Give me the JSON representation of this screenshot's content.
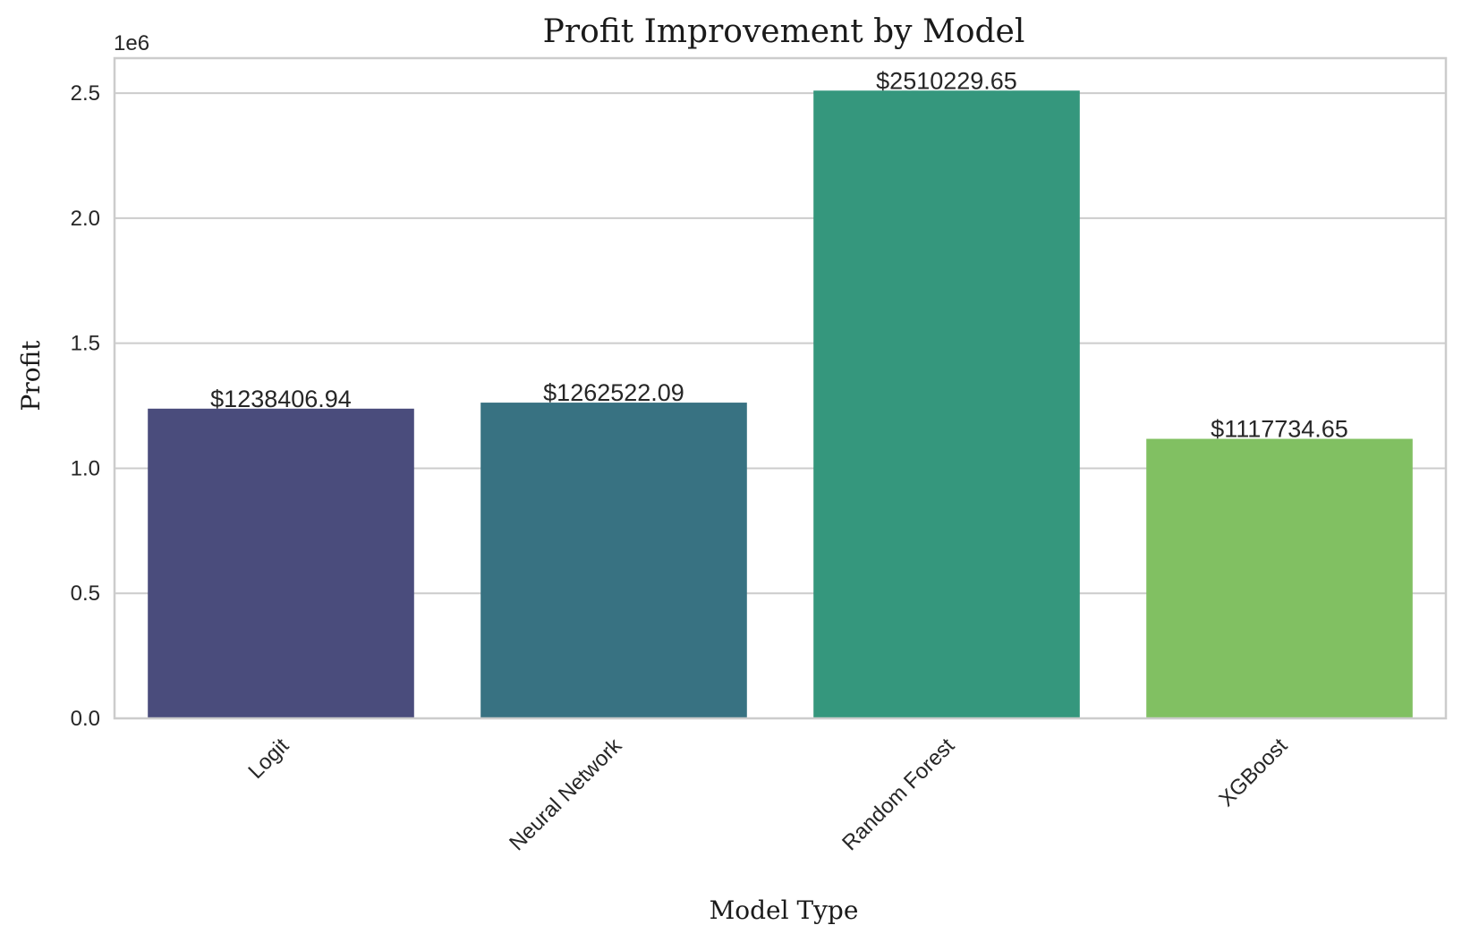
{
  "chart_data": {
    "type": "bar",
    "title": "Profit Improvement by Model",
    "xlabel": "Model Type",
    "ylabel": "Profit",
    "y_offset_label": "1e6",
    "categories": [
      "Logit",
      "Neural Network",
      "Random Forest",
      "XGBoost"
    ],
    "values": [
      1238406.94,
      1262522.09,
      2510229.65,
      1117734.65
    ],
    "data_labels": [
      "$1238406.94",
      "$1262522.09",
      "$2510229.65",
      "$1117734.65"
    ],
    "colors": [
      "#4a4c7c",
      "#387282",
      "#35977d",
      "#81c062"
    ],
    "ylim": [
      0,
      2640000
    ],
    "yticks": [
      0,
      500000,
      1000000,
      1500000,
      2000000,
      2500000
    ],
    "ytick_labels": [
      "0.0",
      "0.5",
      "1.0",
      "1.5",
      "2.0",
      "2.5"
    ],
    "grid": true,
    "legend": "none"
  }
}
